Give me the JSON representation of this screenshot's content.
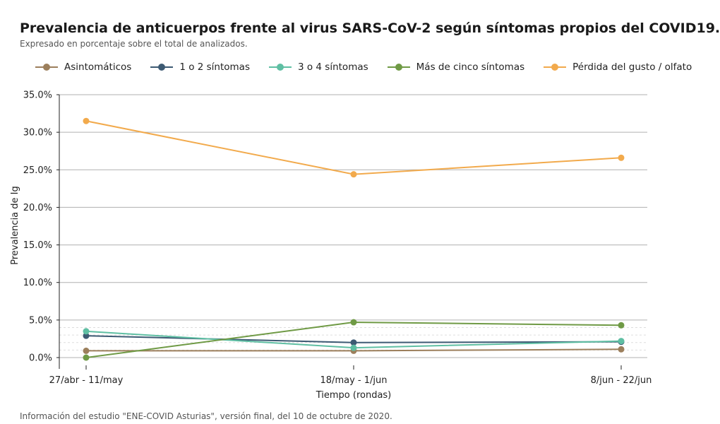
{
  "header": {
    "title": "Prevalencia de anticuerpos frente al virus SARS-CoV-2 según síntomas propios del COVID19.",
    "subtitle": "Expresado en porcentaje sobre el total de analizados."
  },
  "footer": {
    "note": "Información del estudio \"ENE-COVID Asturias\", versión final, del 10 de octubre de 2020."
  },
  "chart_data": {
    "type": "line",
    "title": "Prevalencia de anticuerpos frente al virus SARS-CoV-2 según síntomas propios del COVID19.",
    "subtitle": "Expresado en porcentaje sobre el total de analizados.",
    "xlabel": "Tiempo (rondas)",
    "ylabel": "Prevalencia de Ig",
    "categories": [
      "27/abr - 11/may",
      "18/may - 1/jun",
      "8/jun - 22/jun"
    ],
    "ylim": [
      0,
      35
    ],
    "yticks": [
      0,
      5,
      10,
      15,
      20,
      25,
      30,
      35
    ],
    "ytick_labels": [
      "0.0%",
      "5.0%",
      "10.0%",
      "15.0%",
      "20.0%",
      "25.0%",
      "30.0%",
      "35.0%"
    ],
    "grid": true,
    "legend_position": "top",
    "series": [
      {
        "name": "Asintomáticos",
        "color": "#9c7f5c",
        "values": [
          0.9,
          0.9,
          1.1
        ]
      },
      {
        "name": "1 o 2 síntomas",
        "color": "#3d5a73",
        "values": [
          2.9,
          2.0,
          2.1
        ]
      },
      {
        "name": "3 o 4 síntomas",
        "color": "#5fbfa3",
        "values": [
          3.5,
          1.3,
          2.2
        ]
      },
      {
        "name": "Más de cinco síntomas",
        "color": "#6f9a45",
        "values": [
          0.0,
          4.7,
          4.3
        ]
      },
      {
        "name": "Pérdida del gusto / olfato",
        "color": "#f2aa4c",
        "values": [
          31.5,
          24.4,
          26.6
        ]
      }
    ]
  }
}
